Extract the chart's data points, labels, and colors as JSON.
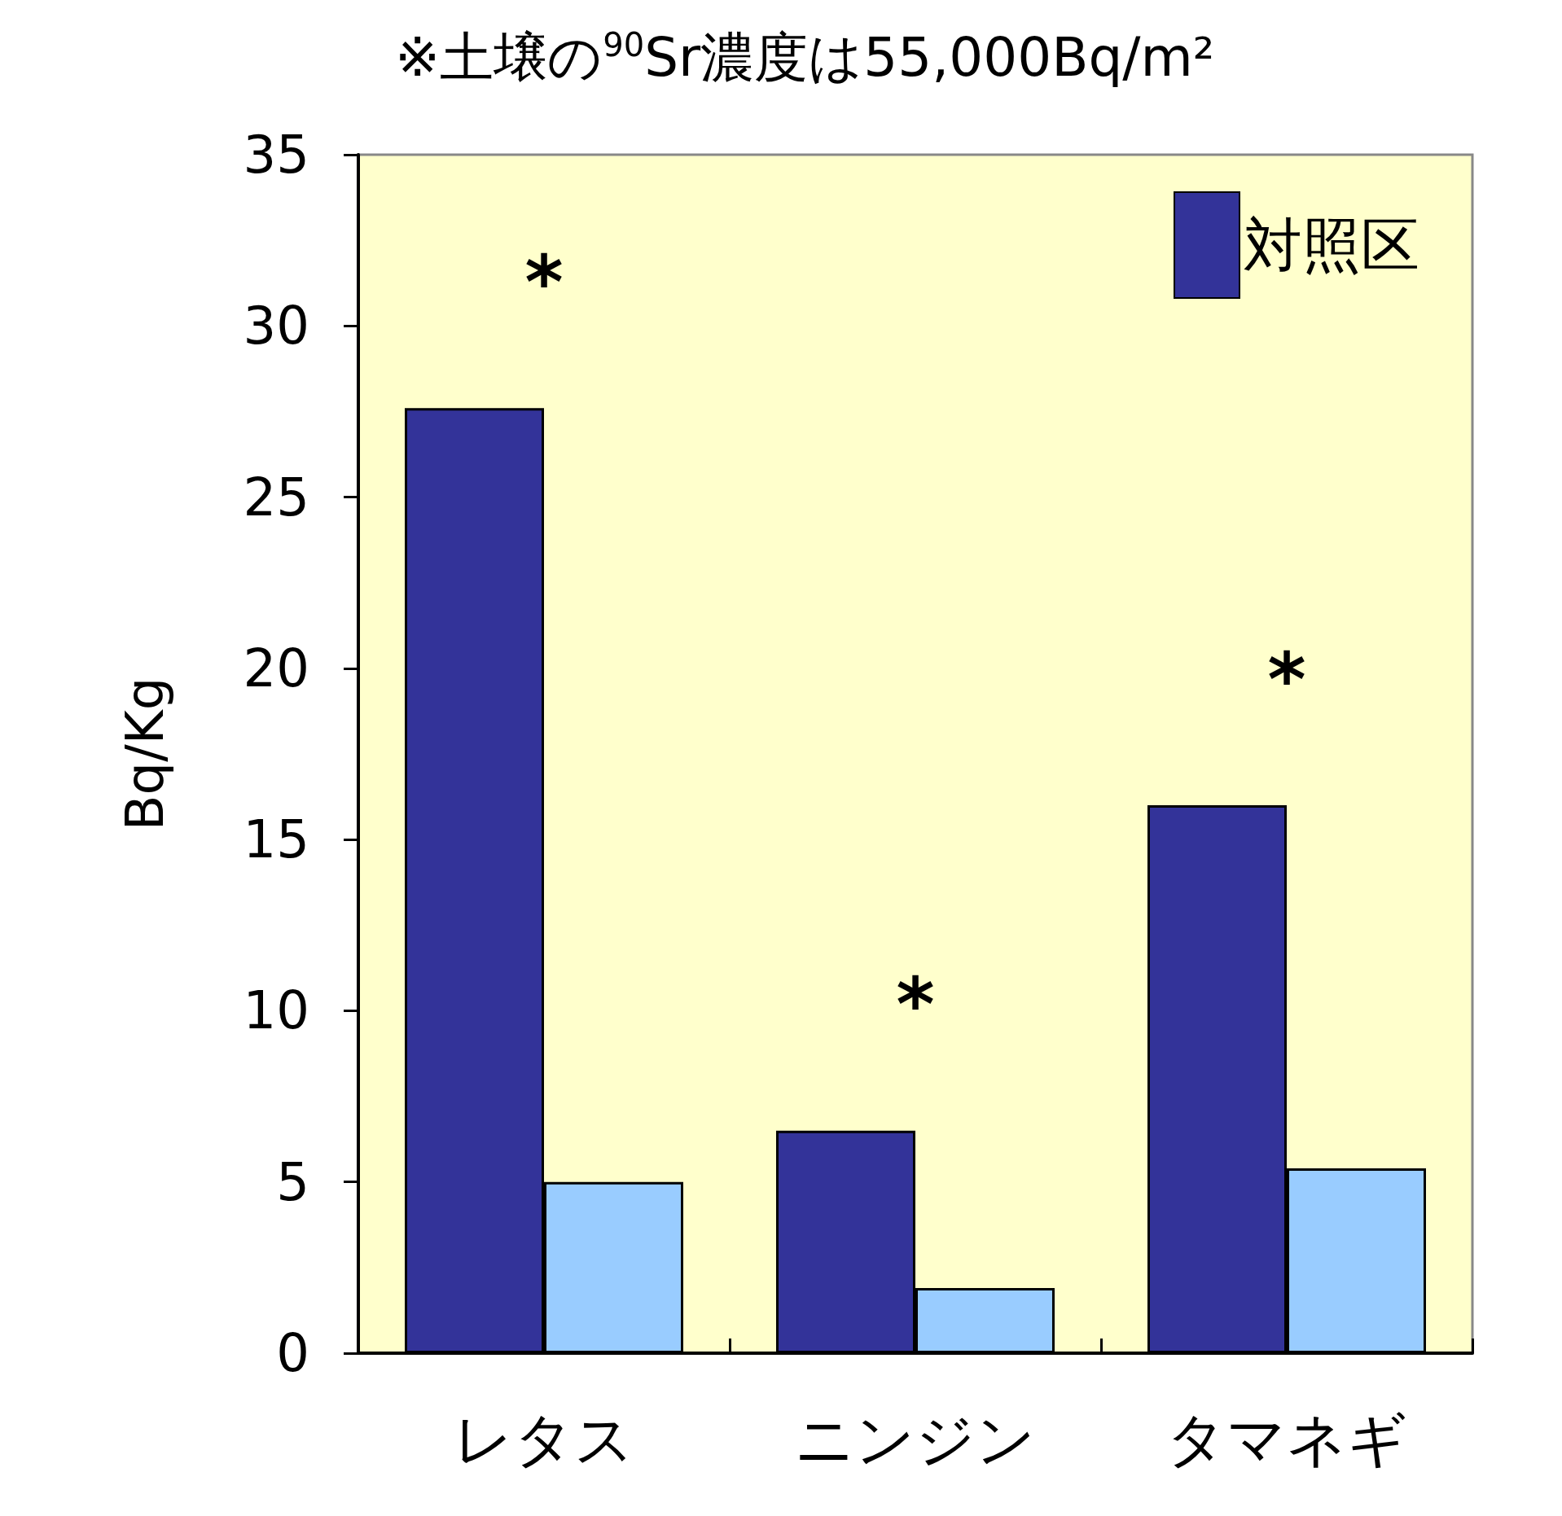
{
  "chart_data": {
    "type": "bar",
    "title": "※土壌の$^{90}$Sr濃度は55,000Bq/m²",
    "ylabel": "Bq/Kg",
    "categories": [
      "レタス",
      "ニンジン",
      "タマネギ"
    ],
    "series": [
      {
        "name": "対照区",
        "color": "#333399",
        "values": [
          27.6,
          6.5,
          16.0
        ]
      },
      {
        "color": "#99ccff",
        "values": [
          5.0,
          1.9,
          5.4
        ]
      }
    ],
    "ylim": [
      0,
      35
    ],
    "yticks": [
      0,
      5,
      10,
      15,
      20,
      25,
      30,
      35
    ],
    "grid": false,
    "legend": "top right",
    "annotations": [
      "*",
      "*",
      "*"
    ]
  }
}
